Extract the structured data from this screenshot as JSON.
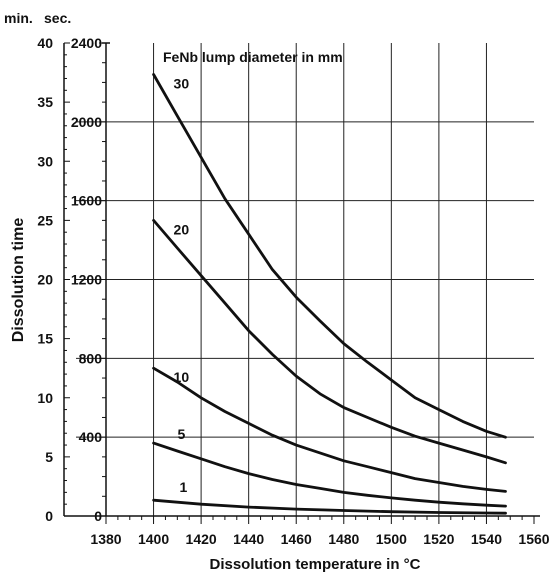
{
  "chart_data": {
    "type": "line",
    "xlabel": "Dissolution temperature in °C",
    "ylabel": "Dissolution time",
    "unit_labels": [
      "min.",
      "sec."
    ],
    "legend_title": "FeNb lump diameter in mm",
    "x_ticks": [
      "1380",
      "1400",
      "1420",
      "1440",
      "1460",
      "1480",
      "1500",
      "1520",
      "1540",
      "1560"
    ],
    "y_ticks_min": [
      "0",
      "5",
      "10",
      "15",
      "20",
      "25",
      "30",
      "35",
      "40"
    ],
    "y_ticks_sec": [
      "0",
      "400",
      "800",
      "1200",
      "1600",
      "2000",
      "2400"
    ],
    "xlim": [
      1380,
      1560
    ],
    "ylim_sec": [
      0,
      2400
    ],
    "ylim_min": [
      0,
      40
    ],
    "grid": true,
    "series": [
      {
        "name": "30",
        "x": [
          1400,
          1410,
          1420,
          1430,
          1440,
          1450,
          1460,
          1470,
          1480,
          1490,
          1500,
          1510,
          1520,
          1530,
          1540,
          1548
        ],
        "y": [
          2240,
          2030,
          1820,
          1610,
          1430,
          1250,
          1110,
          990,
          875,
          780,
          690,
          600,
          540,
          480,
          430,
          400
        ]
      },
      {
        "name": "20",
        "x": [
          1400,
          1410,
          1420,
          1430,
          1440,
          1450,
          1460,
          1470,
          1480,
          1490,
          1500,
          1510,
          1520,
          1530,
          1540,
          1548
        ],
        "y": [
          1500,
          1360,
          1220,
          1080,
          940,
          820,
          710,
          620,
          550,
          500,
          450,
          405,
          370,
          335,
          300,
          270
        ]
      },
      {
        "name": "10",
        "x": [
          1400,
          1410,
          1420,
          1430,
          1440,
          1450,
          1460,
          1470,
          1480,
          1490,
          1500,
          1510,
          1520,
          1530,
          1540,
          1548
        ],
        "y": [
          750,
          680,
          600,
          530,
          470,
          410,
          360,
          320,
          280,
          250,
          220,
          190,
          170,
          150,
          135,
          125
        ]
      },
      {
        "name": "5",
        "x": [
          1400,
          1410,
          1420,
          1430,
          1440,
          1450,
          1460,
          1470,
          1480,
          1490,
          1500,
          1510,
          1520,
          1530,
          1540,
          1548
        ],
        "y": [
          370,
          330,
          290,
          250,
          215,
          185,
          160,
          140,
          120,
          105,
          92,
          80,
          70,
          62,
          55,
          50
        ]
      },
      {
        "name": "1",
        "x": [
          1400,
          1420,
          1440,
          1460,
          1480,
          1500,
          1520,
          1540,
          1548
        ],
        "y": [
          80,
          60,
          45,
          35,
          28,
          22,
          18,
          15,
          14
        ]
      }
    ]
  }
}
